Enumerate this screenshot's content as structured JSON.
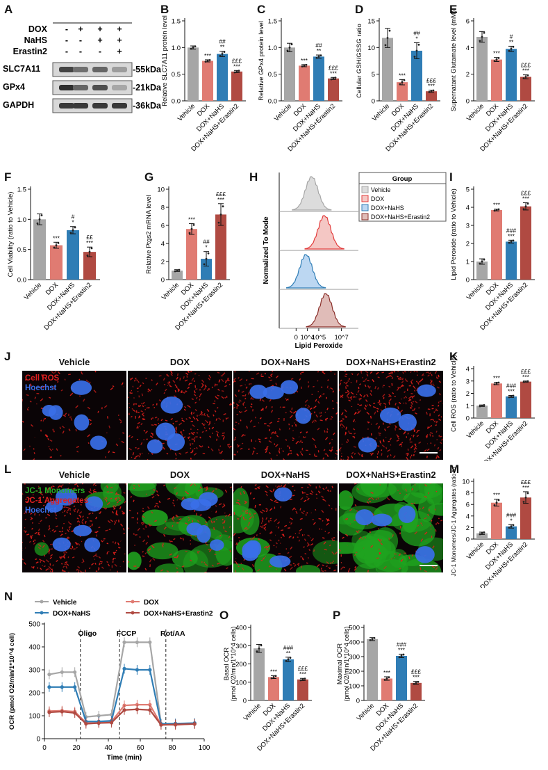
{
  "panels": {
    "A": "A",
    "B": "B",
    "C": "C",
    "D": "D",
    "E": "E",
    "F": "F",
    "G": "G",
    "H": "H",
    "I": "I",
    "J": "J",
    "K": "K",
    "L": "L",
    "M": "M",
    "N": "N",
    "O": "O",
    "P": "P"
  },
  "blot": {
    "treatments": [
      {
        "name": "DOX",
        "signs": [
          "-",
          "+",
          "+",
          "+"
        ]
      },
      {
        "name": "NaHS",
        "signs": [
          "-",
          "-",
          "+",
          "+"
        ]
      },
      {
        "name": "Erastin2",
        "signs": [
          "-",
          "-",
          "-",
          "+"
        ]
      }
    ],
    "bands": [
      {
        "protein": "SLC7A11",
        "size": "-55kDa",
        "intensity": [
          0.85,
          0.65,
          0.7,
          0.45
        ]
      },
      {
        "protein": "GPx4",
        "size": "-21kDa",
        "intensity": [
          0.95,
          0.7,
          0.8,
          0.4
        ]
      },
      {
        "protein": "GAPDH",
        "size": "-36kDa",
        "intensity": [
          0.9,
          0.9,
          0.9,
          0.9
        ]
      }
    ]
  },
  "colors": {
    "vehicle": "#a6a6a6",
    "dox": "#e07b72",
    "nahs": "#2f7db5",
    "erastin": "#b04a42"
  },
  "group_labels": [
    "Vehicle",
    "DOX",
    "DOX+NaHS",
    "DOX+NaHS+Erastin2"
  ],
  "chart_data": [
    {
      "id": "B",
      "type": "bar",
      "ylabel": "Relative SLC7A11 protein level",
      "ylim": [
        0,
        1.5
      ],
      "ticks": [
        "0.0",
        "0.5",
        "1.0",
        "1.5"
      ],
      "tickvals": [
        0,
        0.5,
        1.0,
        1.5
      ],
      "values": [
        1.0,
        0.75,
        0.88,
        0.55
      ],
      "errors": [
        0.03,
        0.02,
        0.05,
        0.02
      ],
      "sig": [
        "",
        "***",
        "##\n**",
        "£££\n***"
      ]
    },
    {
      "id": "C",
      "type": "bar",
      "ylabel": "Relative GPx4 protein level",
      "ylim": [
        0,
        1.5
      ],
      "ticks": [
        "0.0",
        "0.5",
        "1.0",
        "1.5"
      ],
      "tickvals": [
        0,
        0.5,
        1.0,
        1.5
      ],
      "values": [
        1.0,
        0.66,
        0.83,
        0.42
      ],
      "errors": [
        0.08,
        0.02,
        0.03,
        0.02
      ],
      "sig": [
        "",
        "***",
        "##\n**",
        "£££\n***"
      ]
    },
    {
      "id": "D",
      "type": "bar",
      "ylabel": "Cellular GSH/GSSG ratio",
      "ylim": [
        0,
        15
      ],
      "ticks": [
        "0",
        "5",
        "10",
        "15"
      ],
      "tickvals": [
        0,
        5,
        10,
        15
      ],
      "values": [
        11.8,
        3.5,
        9.4,
        1.8
      ],
      "errors": [
        1.8,
        0.5,
        1.5,
        0.2
      ],
      "sig": [
        "",
        "***",
        "##\n*",
        "£££\n***"
      ]
    },
    {
      "id": "E",
      "type": "bar",
      "ylabel": "Supernatant Glutamate level (mM)",
      "ylim": [
        0,
        6
      ],
      "ticks": [
        "0",
        "2",
        "4",
        "6"
      ],
      "tickvals": [
        0,
        2,
        4,
        6
      ],
      "values": [
        4.8,
        3.1,
        3.9,
        1.8
      ],
      "errors": [
        0.4,
        0.15,
        0.2,
        0.15
      ],
      "sig": [
        "",
        "***",
        "#\n**",
        "£££\n***"
      ]
    },
    {
      "id": "F",
      "type": "bar",
      "ylabel": "Cell Viability (ratio to Vehicle)",
      "ylim": [
        0,
        1.5
      ],
      "ticks": [
        "0.0",
        "0.5",
        "1.0",
        "1.5"
      ],
      "tickvals": [
        0,
        0.5,
        1.0,
        1.5
      ],
      "values": [
        1.0,
        0.57,
        0.82,
        0.46
      ],
      "errors": [
        0.09,
        0.05,
        0.06,
        0.08
      ],
      "sig": [
        "",
        "***",
        "#\n*",
        "££\n***"
      ]
    },
    {
      "id": "G",
      "type": "bar",
      "ylabel": "Relative Ptgs2 mRNA level",
      "ylim": [
        0,
        10
      ],
      "ticks": [
        "0",
        "2",
        "4",
        "6",
        "8",
        "10"
      ],
      "tickvals": [
        0,
        2,
        4,
        6,
        8,
        10
      ],
      "values": [
        1.0,
        5.6,
        2.3,
        7.2
      ],
      "errors": [
        0.1,
        0.6,
        0.8,
        1.2
      ],
      "sig": [
        "",
        "***",
        "##\n*",
        "£££\n***"
      ]
    },
    {
      "id": "I",
      "type": "bar",
      "ylabel": "Lipid Peroxide (ratio to Vehicle)",
      "ylim": [
        0,
        5
      ],
      "ticks": [
        "0",
        "1",
        "2",
        "3",
        "4",
        "5"
      ],
      "tickvals": [
        0,
        1,
        2,
        3,
        4,
        5
      ],
      "values": [
        1.0,
        3.85,
        2.1,
        4.05
      ],
      "errors": [
        0.15,
        0.05,
        0.08,
        0.2
      ],
      "sig": [
        "",
        "***",
        "###\n***",
        "£££\n***"
      ]
    },
    {
      "id": "K",
      "type": "bar",
      "ylabel": "Cell ROS (ratio to Vehicle)",
      "ylim": [
        0,
        4
      ],
      "ticks": [
        "0",
        "1",
        "2",
        "3",
        "4"
      ],
      "tickvals": [
        0,
        1,
        2,
        3,
        4
      ],
      "values": [
        1.0,
        2.8,
        1.75,
        2.95
      ],
      "errors": [
        0.06,
        0.1,
        0.08,
        0.05
      ],
      "sig": [
        "",
        "***",
        "###\n***",
        "£££\n***"
      ]
    },
    {
      "id": "M",
      "type": "bar",
      "ylabel": "JC-1 Monomers/JC-1 Aggregates (ratio to Vehicle)",
      "ylim": [
        0,
        10
      ],
      "ticks": [
        "0",
        "2",
        "4",
        "6",
        "8",
        "10"
      ],
      "tickvals": [
        0,
        2,
        4,
        6,
        8,
        10
      ],
      "values": [
        1.0,
        6.3,
        2.2,
        7.2
      ],
      "errors": [
        0.2,
        0.6,
        0.3,
        1.0
      ],
      "sig": [
        "",
        "***",
        "###\n*",
        "£££\n***"
      ]
    },
    {
      "id": "O",
      "type": "bar",
      "ylabel": "Basal OCR",
      "ylabel2": "(pmol O2/min/1*10^4 cells)",
      "ylim": [
        0,
        400
      ],
      "ticks": [
        "0",
        "100",
        "200",
        "300",
        "400"
      ],
      "tickvals": [
        0,
        100,
        200,
        300,
        400
      ],
      "values": [
        285,
        128,
        225,
        115
      ],
      "errors": [
        22,
        8,
        12,
        6
      ],
      "sig": [
        "",
        "***",
        "###\n**",
        "£££\n***"
      ]
    },
    {
      "id": "P",
      "type": "bar",
      "ylabel": "Maximal OCR",
      "ylabel2": "(pmol O2/min/1*10^4 cells)",
      "ylim": [
        0,
        500
      ],
      "ticks": [
        "0",
        "100",
        "200",
        "300",
        "400",
        "500"
      ],
      "tickvals": [
        0,
        100,
        200,
        300,
        400,
        500
      ],
      "values": [
        420,
        150,
        305,
        120
      ],
      "errors": [
        10,
        12,
        12,
        10
      ],
      "sig": [
        "",
        "***",
        "###\n***",
        "£££\n***"
      ]
    },
    {
      "id": "N",
      "type": "line",
      "xlabel": "Time (min)",
      "ylabel": "OCR (pmol O2/min/1*10^4 cell)",
      "xlim": [
        0,
        100
      ],
      "ylim": [
        0,
        500
      ],
      "xticks": [
        0,
        20,
        40,
        60,
        80,
        100
      ],
      "yticks": [
        0,
        100,
        200,
        300,
        400,
        500
      ],
      "x": [
        3,
        11,
        19,
        26,
        34,
        42,
        50,
        58,
        66,
        73,
        82,
        94
      ],
      "series": [
        {
          "name": "Vehicle",
          "values": [
            280,
            290,
            290,
            95,
            100,
            105,
            420,
            420,
            420,
            65,
            65,
            68
          ]
        },
        {
          "name": "DOX",
          "values": [
            120,
            122,
            118,
            70,
            72,
            75,
            145,
            148,
            148,
            62,
            60,
            65
          ]
        },
        {
          "name": "DOX+NaHS",
          "values": [
            225,
            225,
            225,
            75,
            75,
            78,
            305,
            300,
            300,
            65,
            66,
            68
          ]
        },
        {
          "name": "DOX+NaHS+Erastin2",
          "values": [
            115,
            118,
            112,
            65,
            68,
            70,
            125,
            128,
            125,
            60,
            62,
            64
          ]
        }
      ],
      "annotations": [
        {
          "label": "Oligo",
          "x": 22.5
        },
        {
          "label": "FCCP",
          "x": 47
        },
        {
          "label": "Rot/AA",
          "x": 76
        }
      ]
    },
    {
      "id": "H",
      "type": "area",
      "xlabel": "Lipid Peroxide",
      "ylabel": "Normalized To Mode",
      "xtick_labels": [
        "0",
        "10^4",
        "10^5",
        "10^7"
      ],
      "legend_title": "Group",
      "series": [
        {
          "name": "Vehicle",
          "peak_log": 4.4
        },
        {
          "name": "DOX",
          "peak_log": 5.3
        },
        {
          "name": "DOX+NaHS",
          "peak_log": 4.0
        },
        {
          "name": "DOX+NaHS+Erastin2",
          "peak_log": 5.4
        }
      ]
    }
  ],
  "micrographs": {
    "J": {
      "labels": [
        "Vehicle",
        "DOX",
        "DOX+NaHS",
        "DOX+NaHS+Erastin2"
      ],
      "stains": [
        "Cell ROS",
        "Hoechst"
      ],
      "stain_colors": [
        "#e02020",
        "#3a6fe8"
      ],
      "density": [
        0.25,
        0.8,
        0.65,
        0.95
      ]
    },
    "L": {
      "labels": [
        "Vehicle",
        "DOX",
        "DOX+NaHS",
        "DOX+NaHS+Erastin2"
      ],
      "stains": [
        "JC-1 Monomers",
        "JC-1 Aggregates",
        "Hoechst"
      ],
      "stain_colors": [
        "#25b025",
        "#e02020",
        "#3a6fe8"
      ],
      "green": [
        0.1,
        0.5,
        0.2,
        0.95
      ],
      "red": [
        0.85,
        0.45,
        0.65,
        0.3
      ]
    }
  }
}
